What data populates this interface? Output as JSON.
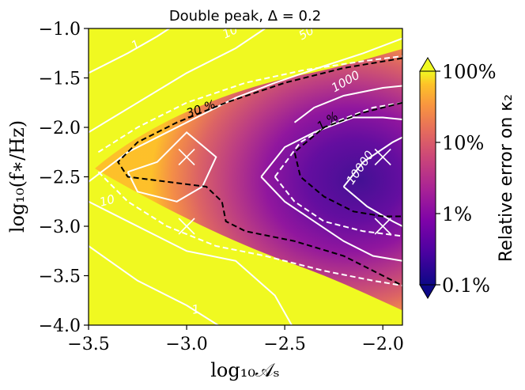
{
  "chart_data": {
    "type": "heatmap",
    "title": "Double peak,  Δ = 0.2",
    "xlabel": "log₁₀𝒜ₛ",
    "ylabel": "log₁₀(f∗/Hz)",
    "xlim": [
      -3.5,
      -1.9
    ],
    "ylim": [
      -4.0,
      -1.0
    ],
    "xticks": [
      -3.5,
      -3.0,
      -2.5,
      -2.0
    ],
    "xtick_labels": [
      "−3.5",
      "−3.0",
      "−2.5",
      "−2.0"
    ],
    "yticks": [
      -4.0,
      -3.5,
      -3.0,
      -2.5,
      -2.0,
      -1.5,
      -1.0
    ],
    "ytick_labels": [
      "−4.0",
      "−3.5",
      "−3.0",
      "−2.5",
      "−2.0",
      "−1.5",
      "−1.0"
    ],
    "colorbar": {
      "label": "Relative error on κ₂",
      "scale": "log",
      "range_percent": [
        0.1,
        100
      ],
      "ticks_percent": [
        0.1,
        1,
        10,
        100
      ],
      "tick_labels": [
        "0.1%",
        "1%",
        "10%",
        "100%"
      ],
      "colormap": "plasma",
      "extend": "both"
    },
    "snr_contours": {
      "color": "#ffffff",
      "levels": [
        1,
        10,
        50,
        1000,
        10000
      ],
      "labels": [
        "1",
        "10",
        "50",
        "1000",
        "10000"
      ]
    },
    "error_contours": {
      "color": "#000000",
      "style": "dashed",
      "levels_percent": [
        30,
        1
      ],
      "labels": [
        "30 %",
        "1 %"
      ]
    },
    "markers": [
      {
        "x": -3.0,
        "y": -2.3,
        "symbol": "x"
      },
      {
        "x": -3.0,
        "y": -3.0,
        "symbol": "x"
      },
      {
        "x": -2.0,
        "y": -2.3,
        "symbol": "x"
      },
      {
        "x": -2.0,
        "y": -3.0,
        "symbol": "x"
      }
    ]
  }
}
